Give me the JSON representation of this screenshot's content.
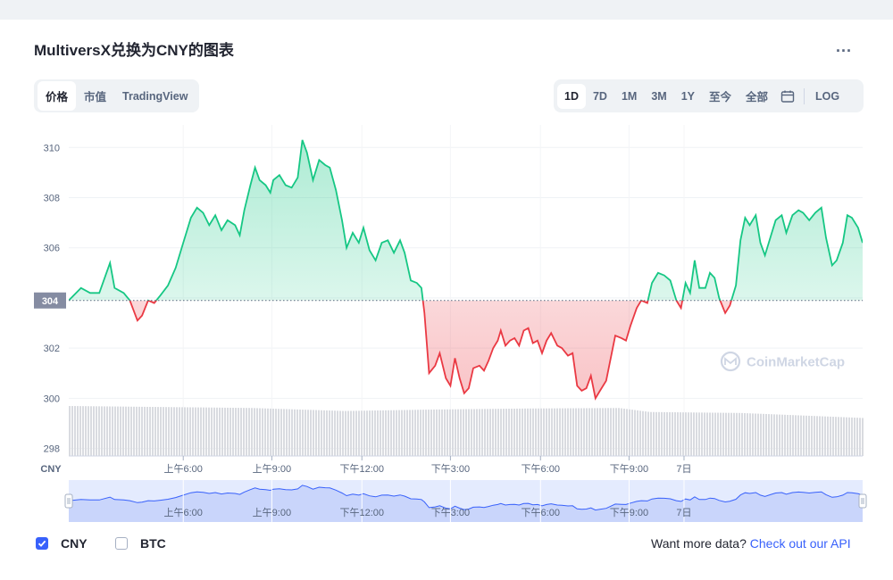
{
  "title": "MultiversX兑换为CNY的图表",
  "more_label": "...",
  "tabs": [
    {
      "label": "价格",
      "active": true
    },
    {
      "label": "市值",
      "active": false
    },
    {
      "label": "TradingView",
      "active": false
    }
  ],
  "ranges": [
    {
      "label": "1D",
      "active": true
    },
    {
      "label": "7D",
      "active": false
    },
    {
      "label": "1M",
      "active": false
    },
    {
      "label": "3M",
      "active": false
    },
    {
      "label": "1Y",
      "active": false
    },
    {
      "label": "至今",
      "active": false
    },
    {
      "label": "全部",
      "active": false
    }
  ],
  "log_label": "LOG",
  "watermark": "CoinMarketCap",
  "legend": {
    "cny_label": "CNY",
    "cny_checked": true,
    "btc_label": "BTC",
    "btc_checked": false
  },
  "footer": {
    "text": "Want more data?",
    "link": "Check out our API"
  },
  "colors": {
    "up": "#16c784",
    "down": "#ea3943",
    "volume": "#d9dbe0",
    "accent": "#3861fb"
  },
  "chart_data": {
    "type": "line",
    "currency_label": "CNY",
    "yticks": [
      298,
      300,
      302,
      304,
      306,
      308,
      310
    ],
    "ylim": [
      297.7,
      310.9
    ],
    "baseline_value": 303.9,
    "baseline_label": "304",
    "xticks": [
      "上午6:00",
      "上午9:00",
      "下午12:00",
      "下午3:00",
      "下午6:00",
      "下午9:00",
      "7日"
    ],
    "grid": true,
    "price": [
      [
        0,
        303.9
      ],
      [
        0.8,
        304.4
      ],
      [
        1.4,
        304.2
      ],
      [
        2,
        304.2
      ],
      [
        2.7,
        305.4
      ],
      [
        3.0,
        304.4
      ],
      [
        3.6,
        304.2
      ],
      [
        4.0,
        303.9
      ],
      [
        4.5,
        303.1
      ],
      [
        4.8,
        303.3
      ],
      [
        5.2,
        303.9
      ],
      [
        5.6,
        303.8
      ],
      [
        6.0,
        304.1
      ],
      [
        6.5,
        304.5
      ],
      [
        7.0,
        305.2
      ],
      [
        7.5,
        306.2
      ],
      [
        8.0,
        307.2
      ],
      [
        8.4,
        307.6
      ],
      [
        8.8,
        307.4
      ],
      [
        9.2,
        306.9
      ],
      [
        9.6,
        307.3
      ],
      [
        10.0,
        306.7
      ],
      [
        10.4,
        307.1
      ],
      [
        10.9,
        306.9
      ],
      [
        11.2,
        306.5
      ],
      [
        11.5,
        307.5
      ],
      [
        11.9,
        308.5
      ],
      [
        12.2,
        309.2
      ],
      [
        12.5,
        308.7
      ],
      [
        12.9,
        308.5
      ],
      [
        13.2,
        308.2
      ],
      [
        13.4,
        308.7
      ],
      [
        13.8,
        308.9
      ],
      [
        14.2,
        308.5
      ],
      [
        14.6,
        308.4
      ],
      [
        15.0,
        308.8
      ],
      [
        15.3,
        310.3
      ],
      [
        15.6,
        309.8
      ],
      [
        16.0,
        308.7
      ],
      [
        16.4,
        309.5
      ],
      [
        16.8,
        309.3
      ],
      [
        17.1,
        309.2
      ],
      [
        17.5,
        308.3
      ],
      [
        17.9,
        307.1
      ],
      [
        18.2,
        306.0
      ],
      [
        18.6,
        306.6
      ],
      [
        19.0,
        306.2
      ],
      [
        19.3,
        306.8
      ],
      [
        19.7,
        305.9
      ],
      [
        20.1,
        305.5
      ],
      [
        20.5,
        306.2
      ],
      [
        20.9,
        306.3
      ],
      [
        21.3,
        305.8
      ],
      [
        21.7,
        306.3
      ],
      [
        22.0,
        305.8
      ],
      [
        22.4,
        304.7
      ],
      [
        22.8,
        304.6
      ],
      [
        23.1,
        304.4
      ],
      [
        23.3,
        303.4
      ],
      [
        23.6,
        301.0
      ],
      [
        24.0,
        301.3
      ],
      [
        24.3,
        301.8
      ],
      [
        24.7,
        300.8
      ],
      [
        25.0,
        300.5
      ],
      [
        25.3,
        301.6
      ],
      [
        25.6,
        300.8
      ],
      [
        25.9,
        300.2
      ],
      [
        26.2,
        300.4
      ],
      [
        26.5,
        301.2
      ],
      [
        26.9,
        301.3
      ],
      [
        27.2,
        301.1
      ],
      [
        27.5,
        301.5
      ],
      [
        27.8,
        302.0
      ],
      [
        28.1,
        302.3
      ],
      [
        28.3,
        302.7
      ],
      [
        28.6,
        302.1
      ],
      [
        28.9,
        302.3
      ],
      [
        29.2,
        302.4
      ],
      [
        29.5,
        302.1
      ],
      [
        29.8,
        302.7
      ],
      [
        30.1,
        302.8
      ],
      [
        30.4,
        302.2
      ],
      [
        30.7,
        302.3
      ],
      [
        31.0,
        301.8
      ],
      [
        31.3,
        302.3
      ],
      [
        31.6,
        302.6
      ],
      [
        32.0,
        302.1
      ],
      [
        32.3,
        302.0
      ],
      [
        32.7,
        301.7
      ],
      [
        33.0,
        301.8
      ],
      [
        33.3,
        300.5
      ],
      [
        33.6,
        300.3
      ],
      [
        33.9,
        300.4
      ],
      [
        34.2,
        300.9
      ],
      [
        34.5,
        300.0
      ],
      [
        34.8,
        300.3
      ],
      [
        35.2,
        300.7
      ],
      [
        35.5,
        301.6
      ],
      [
        35.8,
        302.5
      ],
      [
        36.2,
        302.4
      ],
      [
        36.5,
        302.3
      ],
      [
        36.8,
        302.9
      ],
      [
        37.2,
        303.6
      ],
      [
        37.5,
        303.9
      ],
      [
        37.9,
        303.8
      ],
      [
        38.2,
        304.6
      ],
      [
        38.6,
        305.0
      ],
      [
        39.0,
        304.9
      ],
      [
        39.4,
        304.7
      ],
      [
        39.8,
        303.9
      ],
      [
        40.1,
        303.6
      ],
      [
        40.4,
        304.6
      ],
      [
        40.7,
        304.2
      ],
      [
        41.0,
        305.5
      ],
      [
        41.3,
        304.4
      ],
      [
        41.7,
        304.4
      ],
      [
        42.0,
        305.0
      ],
      [
        42.3,
        304.8
      ],
      [
        42.6,
        304.0
      ],
      [
        43.0,
        303.4
      ],
      [
        43.3,
        303.7
      ],
      [
        43.7,
        304.5
      ],
      [
        44.0,
        306.3
      ],
      [
        44.3,
        307.2
      ],
      [
        44.6,
        306.9
      ],
      [
        45.0,
        307.3
      ],
      [
        45.3,
        306.2
      ],
      [
        45.6,
        305.7
      ],
      [
        46.0,
        306.5
      ],
      [
        46.3,
        307.1
      ],
      [
        46.7,
        307.3
      ],
      [
        47.0,
        306.6
      ],
      [
        47.4,
        307.3
      ],
      [
        47.8,
        307.5
      ],
      [
        48.1,
        307.4
      ],
      [
        48.5,
        307.1
      ],
      [
        48.9,
        307.4
      ],
      [
        49.3,
        307.6
      ],
      [
        49.6,
        306.4
      ],
      [
        50.0,
        305.3
      ],
      [
        50.3,
        305.5
      ],
      [
        50.7,
        306.2
      ],
      [
        51.0,
        307.3
      ],
      [
        51.3,
        307.2
      ],
      [
        51.7,
        306.8
      ],
      [
        52.0,
        306.2
      ]
    ],
    "volume_relative": [
      [
        0,
        1.0
      ],
      [
        6,
        0.98
      ],
      [
        12,
        0.96
      ],
      [
        18,
        0.9
      ],
      [
        24,
        0.93
      ],
      [
        30,
        0.95
      ],
      [
        36,
        0.96
      ],
      [
        38,
        0.88
      ],
      [
        44,
        0.86
      ],
      [
        52,
        0.76
      ]
    ]
  }
}
